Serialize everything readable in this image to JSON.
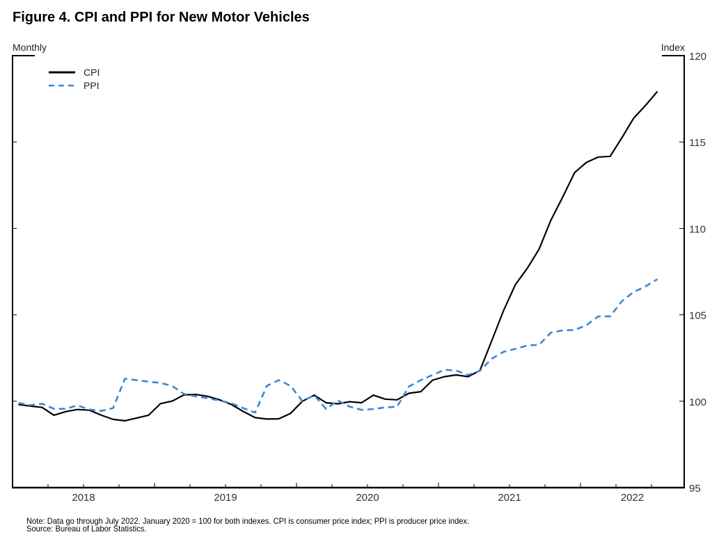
{
  "figure": {
    "title": "Figure 4. CPI and PPI for New Motor Vehicles",
    "note": "Note: Data go through July 2022. January 2020 = 100 for both indexes. CPI is consumer price index; PPI is producer price index.",
    "source": "Source: Bureau of Labor Statistics."
  },
  "chart_data": {
    "type": "line",
    "title": "Figure 4. CPI and PPI for New Motor Vehicles",
    "xlabel": "Monthly",
    "ylabel": "Index",
    "frequency": "monthly",
    "x_start": "2018-01",
    "x_end": "2022-07",
    "x_axis_range": [
      "2018-01",
      "2022-09"
    ],
    "x_tick_labels": [
      "2018",
      "2019",
      "2020",
      "2021",
      "2022"
    ],
    "x_tick_interval_months": 3,
    "ylim": [
      95,
      120
    ],
    "y_ticks": [
      95,
      100,
      105,
      110,
      115,
      120
    ],
    "y_axis_side": "right",
    "grid": false,
    "legend": {
      "placement": "top-left",
      "entries": [
        "CPI",
        "PPI"
      ]
    },
    "series": [
      {
        "name": "CPI",
        "color": "#000000",
        "style": "solid",
        "values": [
          99.81,
          99.72,
          99.64,
          99.19,
          99.4,
          99.52,
          99.48,
          99.19,
          98.95,
          98.87,
          99.03,
          99.19,
          99.86,
          100.01,
          100.37,
          100.39,
          100.28,
          100.08,
          99.81,
          99.41,
          99.05,
          98.97,
          98.98,
          99.3,
          100.0,
          100.35,
          99.91,
          99.85,
          99.97,
          99.91,
          100.35,
          100.12,
          100.08,
          100.46,
          100.55,
          101.22,
          101.42,
          101.52,
          101.42,
          101.78,
          103.5,
          105.25,
          106.75,
          107.69,
          108.8,
          110.48,
          111.82,
          113.23,
          113.82,
          114.13,
          114.17,
          115.25,
          116.39,
          117.12,
          117.93
        ]
      },
      {
        "name": "PPI",
        "color": "#3a87d6",
        "style": "dashed",
        "values": [
          99.9,
          99.77,
          99.85,
          99.56,
          99.56,
          99.76,
          99.52,
          99.44,
          99.6,
          101.3,
          101.22,
          101.13,
          101.06,
          100.88,
          100.42,
          100.28,
          100.17,
          100.04,
          99.88,
          99.6,
          99.34,
          100.89,
          101.22,
          100.89,
          100.0,
          100.35,
          99.55,
          100.04,
          99.68,
          99.5,
          99.55,
          99.64,
          99.68,
          100.85,
          101.22,
          101.52,
          101.82,
          101.77,
          101.52,
          101.76,
          102.46,
          102.86,
          103.03,
          103.23,
          103.26,
          103.97,
          104.1,
          104.12,
          104.4,
          104.91,
          104.91,
          105.79,
          106.32,
          106.65,
          107.06
        ]
      }
    ]
  }
}
